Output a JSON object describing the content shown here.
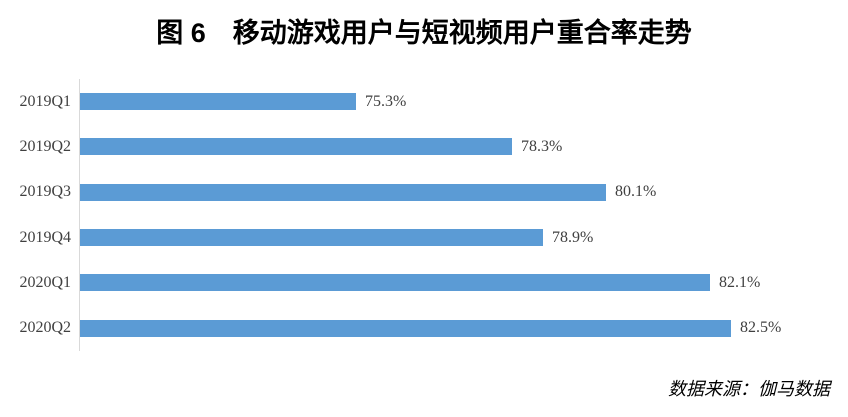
{
  "figure": {
    "title": "图 6　移动游戏用户与短视频用户重合率走势",
    "source_note": "数据来源：伽马数据"
  },
  "colors": {
    "bar": "#5b9bd5",
    "axis_line": "#d9d9d9",
    "label_text": "#404040",
    "title_text": "#000000"
  },
  "chart_data": {
    "type": "bar",
    "orientation": "horizontal",
    "title": "图 6　移动游戏用户与短视频用户重合率走势",
    "categories": [
      "2019Q1",
      "2019Q2",
      "2019Q3",
      "2019Q4",
      "2020Q1",
      "2020Q2"
    ],
    "values": [
      75.3,
      78.3,
      80.1,
      78.9,
      82.1,
      82.5
    ],
    "value_labels": [
      "75.3%",
      "78.3%",
      "80.1%",
      "78.9%",
      "82.1%",
      "82.5%"
    ],
    "unit": "%",
    "xlabel": "",
    "ylabel": "",
    "xlim": [
      70,
      85
    ],
    "grid": false,
    "legend": false,
    "data_labels": "outside-end",
    "source_note": "数据来源：伽马数据"
  }
}
